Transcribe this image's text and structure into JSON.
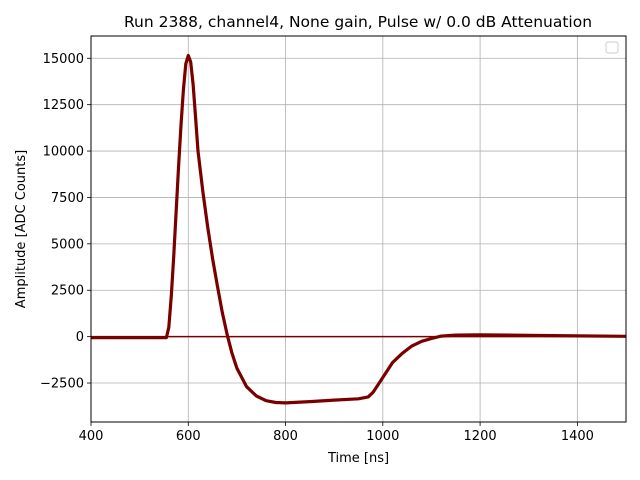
{
  "chart_data": {
    "type": "line",
    "title": "Run 2388, channel4, None gain, Pulse w/ 0.0 dB Attenuation",
    "xlabel": "Time [ns]",
    "ylabel": "Amplitude [ADC Counts]",
    "xlim": [
      400,
      1500
    ],
    "ylim": [
      -4600,
      16200
    ],
    "xticks": [
      400,
      600,
      800,
      1000,
      1200,
      1400
    ],
    "yticks": [
      -2500,
      0,
      2500,
      5000,
      7500,
      10000,
      12500,
      15000
    ],
    "yticklabels": [
      "−2500",
      "0",
      "2500",
      "5000",
      "7500",
      "10000",
      "12500",
      "15000"
    ],
    "grid": true,
    "legend": "top-right",
    "series_color": "#7a0000",
    "series": [
      {
        "x": [
          400,
          500,
          555,
          560,
          565,
          570,
          575,
          580,
          585,
          590,
          595,
          600,
          605,
          610,
          615,
          620,
          630,
          640,
          650,
          660,
          670,
          680,
          690,
          700,
          720,
          740,
          760,
          780,
          800,
          850,
          900,
          950,
          970,
          980,
          990,
          1000,
          1010,
          1020,
          1040,
          1060,
          1080,
          1100,
          1120,
          1150,
          1200,
          1300,
          1400,
          1500
        ],
        "y": [
          -50,
          -50,
          -50,
          500,
          2200,
          4300,
          6700,
          9100,
          11400,
          13300,
          14700,
          15150,
          14800,
          13600,
          11800,
          10000,
          7800,
          5900,
          4200,
          2700,
          1300,
          100,
          -900,
          -1700,
          -2700,
          -3200,
          -3450,
          -3550,
          -3570,
          -3500,
          -3420,
          -3350,
          -3250,
          -3000,
          -2600,
          -2200,
          -1800,
          -1400,
          -900,
          -500,
          -250,
          -100,
          30,
          80,
          100,
          70,
          40,
          20
        ]
      }
    ],
    "baseline": 0
  }
}
